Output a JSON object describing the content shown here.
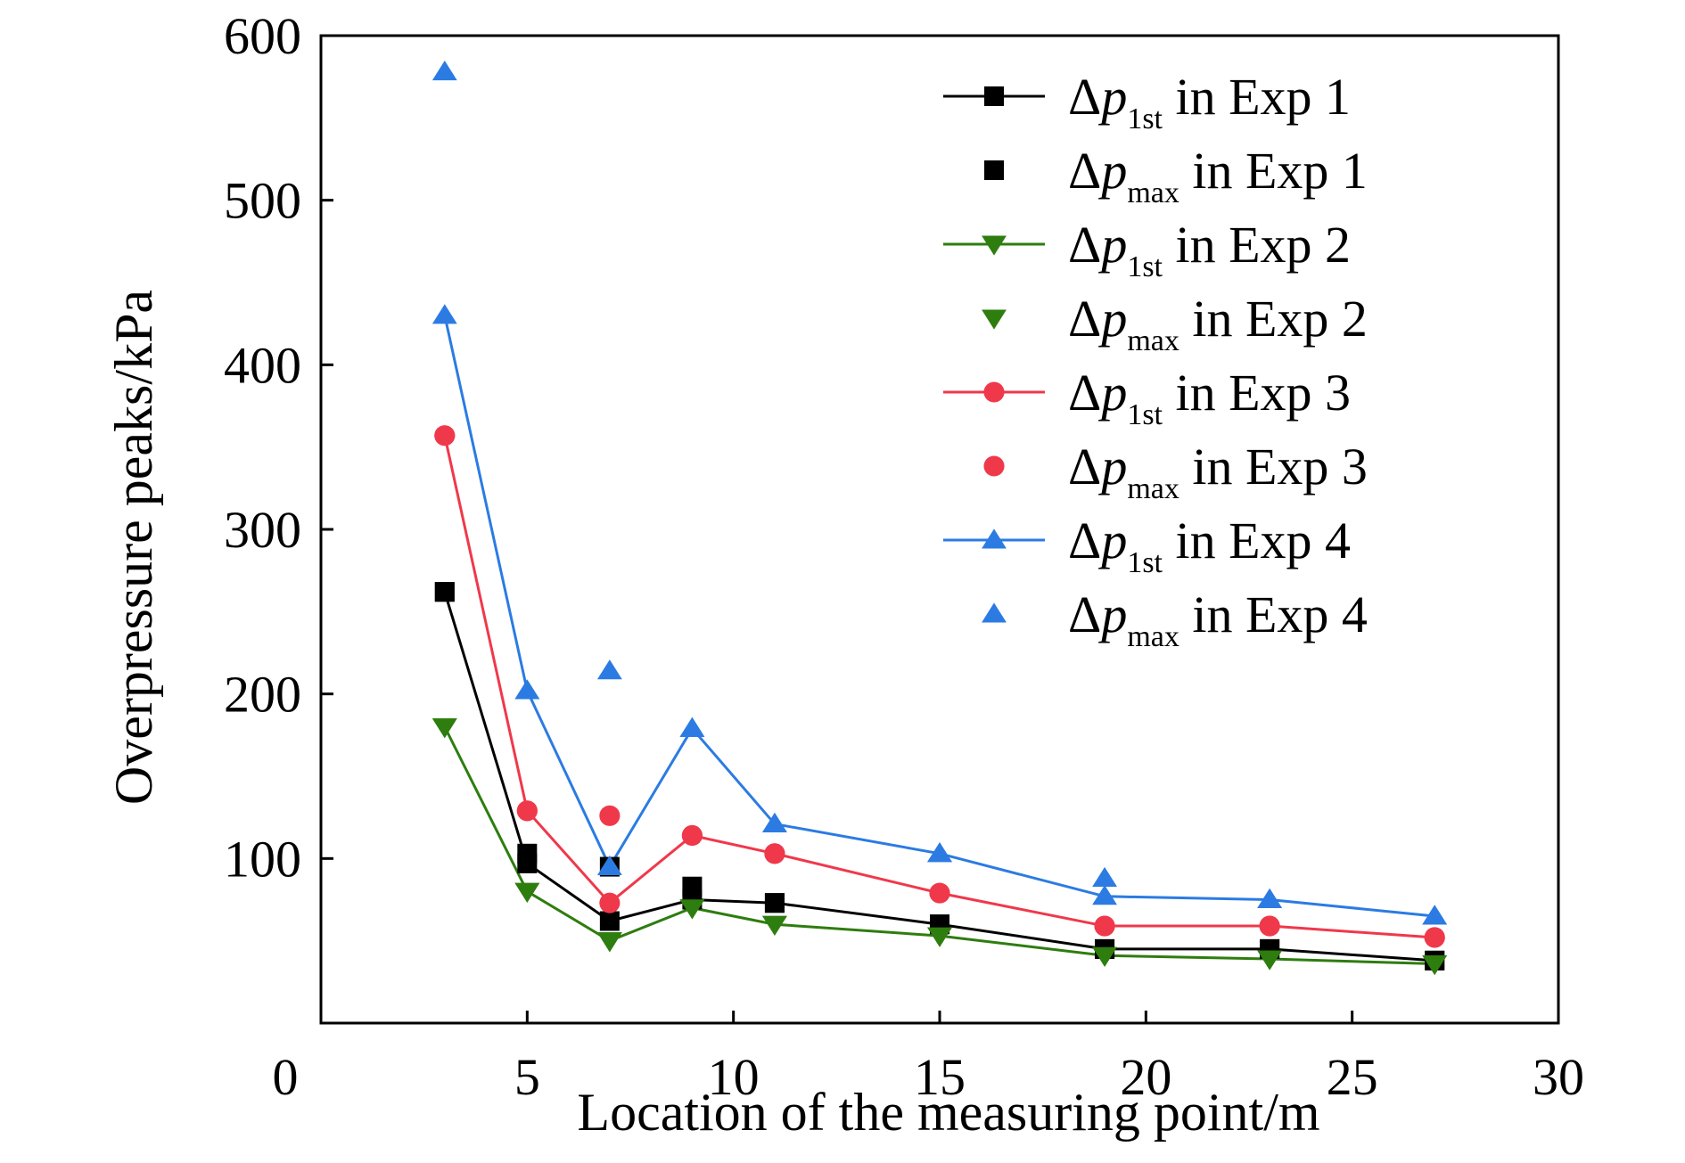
{
  "chart_data": {
    "type": "line",
    "xlabel": "Location of the measuring point/m",
    "ylabel": "Overpressure peaks/kPa",
    "xlim": [
      0,
      30
    ],
    "ylim": [
      0,
      600
    ],
    "xticks": [
      0,
      5,
      10,
      15,
      20,
      25,
      30
    ],
    "yticks": [
      100,
      200,
      300,
      400,
      500,
      600
    ],
    "y_zero_label": "0",
    "grid": false,
    "legend_position": "top-right",
    "x": [
      3,
      5,
      7,
      9,
      11,
      15,
      19,
      23,
      27
    ],
    "series": [
      {
        "name": "in Exp 1",
        "symbol": "Δp",
        "subscript": "1st",
        "kind": "line",
        "marker": "square",
        "color": "#000000",
        "values": [
          262,
          97,
          62,
          75,
          73,
          60,
          45,
          45,
          38
        ]
      },
      {
        "name": "in Exp 1",
        "symbol": "Δp",
        "subscript": "max",
        "kind": "scatter",
        "marker": "square",
        "color": "#000000",
        "values": [
          262,
          103,
          95,
          83,
          73,
          60,
          45,
          45,
          38
        ]
      },
      {
        "name": "in Exp 2",
        "symbol": "Δp",
        "subscript": "1st",
        "kind": "line",
        "marker": "triangle-down",
        "color": "#2e7d0f",
        "values": [
          180,
          80,
          50,
          70,
          60,
          53,
          41,
          39,
          36
        ]
      },
      {
        "name": "in Exp 2",
        "symbol": "Δp",
        "subscript": "max",
        "kind": "scatter",
        "marker": "triangle-down",
        "color": "#2e7d0f",
        "values": [
          180,
          80,
          50,
          70,
          60,
          53,
          41,
          39,
          36
        ]
      },
      {
        "name": "in Exp 3",
        "symbol": "Δp",
        "subscript": "1st",
        "kind": "line",
        "marker": "circle",
        "color": "#f0384b",
        "values": [
          357,
          129,
          73,
          114,
          103,
          79,
          59,
          59,
          52
        ]
      },
      {
        "name": "in Exp 3",
        "symbol": "Δp",
        "subscript": "max",
        "kind": "scatter",
        "marker": "circle",
        "color": "#f0384b",
        "values": [
          357,
          129,
          126,
          114,
          103,
          79,
          59,
          59,
          52
        ]
      },
      {
        "name": "in Exp 4",
        "symbol": "Δp",
        "subscript": "1st",
        "kind": "line",
        "marker": "triangle-up",
        "color": "#2b7be3",
        "values": [
          430,
          202,
          95,
          179,
          121,
          103,
          77,
          75,
          65
        ]
      },
      {
        "name": "in Exp 4",
        "symbol": "Δp",
        "subscript": "max",
        "kind": "scatter",
        "marker": "triangle-up",
        "color": "#2b7be3",
        "values": [
          578,
          202,
          214,
          179,
          121,
          103,
          88,
          75,
          65
        ]
      }
    ]
  }
}
